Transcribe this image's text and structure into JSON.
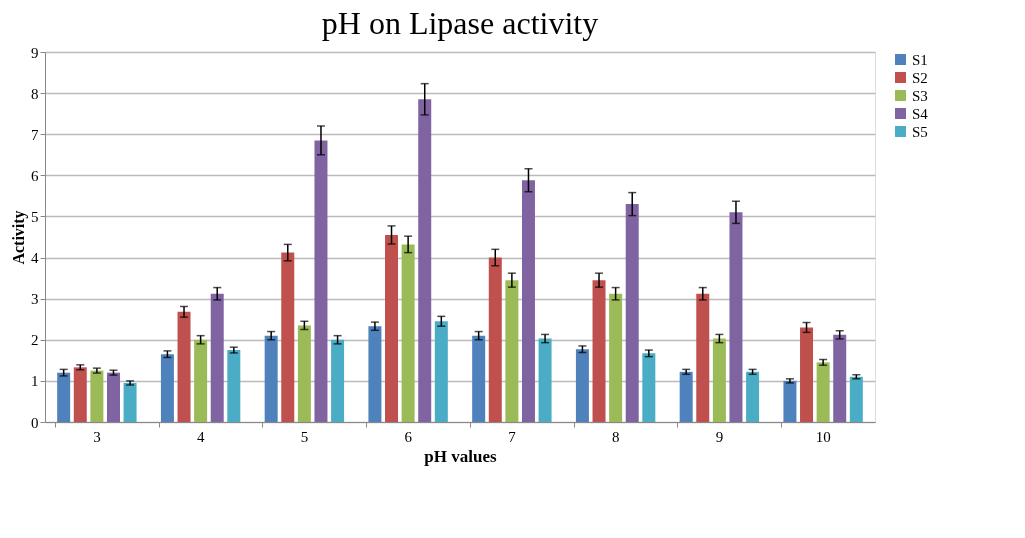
{
  "chart_data": {
    "type": "bar",
    "title": "pH on Lipase activity",
    "xlabel": "pH values",
    "ylabel": "Activity",
    "categories": [
      "3",
      "4",
      "5",
      "6",
      "7",
      "8",
      "9",
      "10"
    ],
    "series": [
      {
        "name": "S1",
        "color": "#4f81bd",
        "values": [
          1.2,
          1.65,
          2.1,
          2.33,
          2.1,
          1.77,
          1.22,
          1.0
        ],
        "errors": [
          0.08,
          0.08,
          0.1,
          0.1,
          0.1,
          0.08,
          0.06,
          0.05
        ]
      },
      {
        "name": "S2",
        "color": "#c0504d",
        "values": [
          1.33,
          2.68,
          4.12,
          4.55,
          4.0,
          3.45,
          3.12,
          2.3
        ],
        "errors": [
          0.06,
          0.13,
          0.2,
          0.22,
          0.2,
          0.17,
          0.15,
          0.12
        ]
      },
      {
        "name": "S3",
        "color": "#9bbb59",
        "values": [
          1.25,
          2.0,
          2.35,
          4.32,
          3.45,
          3.12,
          2.03,
          1.45
        ],
        "errors": [
          0.06,
          0.1,
          0.1,
          0.2,
          0.17,
          0.15,
          0.1,
          0.07
        ]
      },
      {
        "name": "S4",
        "color": "#8064a2",
        "values": [
          1.2,
          3.12,
          6.85,
          7.85,
          5.88,
          5.3,
          5.1,
          2.12
        ],
        "errors": [
          0.06,
          0.15,
          0.35,
          0.38,
          0.28,
          0.28,
          0.27,
          0.1
        ]
      },
      {
        "name": "S5",
        "color": "#4bacc6",
        "values": [
          0.95,
          1.75,
          2.0,
          2.45,
          2.03,
          1.67,
          1.22,
          1.1
        ],
        "errors": [
          0.05,
          0.07,
          0.1,
          0.12,
          0.1,
          0.08,
          0.06,
          0.05
        ]
      }
    ],
    "ylim": [
      0,
      9
    ],
    "yticks": [
      0,
      1,
      2,
      3,
      4,
      5,
      6,
      7,
      8,
      9
    ],
    "grid": "y",
    "legend": "right"
  }
}
